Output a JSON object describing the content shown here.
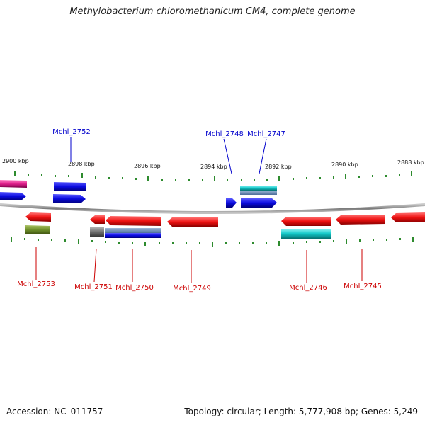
{
  "title": "Methylobacterium chloromethanicum CM4, complete genome",
  "footer": {
    "accession": "Accession: NC_011757",
    "summary": "Topology: circular; Length: 5,777,908 bp; Genes: 5,249"
  },
  "scale_labels": [
    "2900 kbp",
    "2898 kbp",
    "2896 kbp",
    "2894 kbp",
    "2892 kbp",
    "2890 kbp",
    "2888 kbp"
  ],
  "top_gene_labels": [
    "Mchl_2752",
    "Mchl_2748",
    "Mchl_2747"
  ],
  "bottom_gene_labels": [
    "Mchl_2753",
    "Mchl_2751",
    "Mchl_2750",
    "Mchl_2749",
    "Mchl_2746",
    "Mchl_2745"
  ],
  "colors": {
    "forward_label": "#0000cc",
    "reverse_label": "#cc0000",
    "tick": "#2e8b2e",
    "backbone": "#8a8a8a",
    "blue": "#0a0ae0",
    "red": "#ee1111",
    "cyan": "#10c8c8",
    "magenta": "#e0208c",
    "olive": "#6e8f2a",
    "gray": "#707070"
  }
}
